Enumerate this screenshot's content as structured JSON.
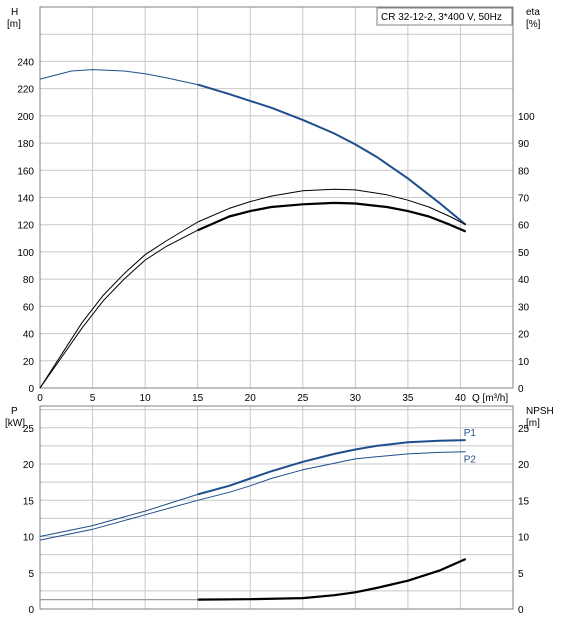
{
  "chart_data": [
    {
      "type": "line",
      "title": "CR 32-12-2, 3*400 V, 50Hz",
      "ylabel_left": [
        "H",
        "[m]"
      ],
      "ylabel_right": [
        "eta",
        "[%]"
      ],
      "xlabel": "Q [m³/h]",
      "xlim": [
        0,
        45
      ],
      "ylim_left": [
        0,
        280
      ],
      "ylim_right": [
        0,
        140
      ],
      "x_ticks": [
        "0",
        "5",
        "10",
        "15",
        "20",
        "25",
        "30",
        "35",
        "40"
      ],
      "y_ticks_left": [
        "0",
        "20",
        "40",
        "60",
        "80",
        "100",
        "120",
        "140",
        "160",
        "180",
        "200",
        "220",
        "240"
      ],
      "y_ticks_right": [
        "0",
        "10",
        "20",
        "30",
        "40",
        "50",
        "60",
        "70",
        "80",
        "90",
        "100"
      ],
      "grid": true,
      "series": [
        {
          "axis": "left",
          "color": "#1f4e8c",
          "points": [
            [
              0,
              227
            ],
            [
              3,
              233
            ],
            [
              5,
              234
            ],
            [
              8,
              233
            ],
            [
              10,
              231
            ],
            [
              12,
              228
            ],
            [
              15,
              223
            ],
            [
              18,
              216
            ],
            [
              20,
              211
            ],
            [
              22,
              206
            ],
            [
              25,
              197
            ],
            [
              28,
              187
            ],
            [
              30,
              179
            ],
            [
              32,
              170
            ],
            [
              35,
              154
            ],
            [
              38,
              136
            ],
            [
              40.5,
              120
            ]
          ]
        },
        {
          "axis": "right",
          "color": "#000000",
          "points": [
            [
              0,
              0
            ],
            [
              2,
              12
            ],
            [
              4,
              24
            ],
            [
              6,
              34
            ],
            [
              8,
              42
            ],
            [
              10,
              49
            ],
            [
              12,
              54
            ],
            [
              15,
              61
            ],
            [
              18,
              66
            ],
            [
              20,
              68.5
            ],
            [
              22,
              70.5
            ],
            [
              25,
              72.5
            ],
            [
              28,
              73
            ],
            [
              30,
              72.8
            ],
            [
              33,
              71
            ],
            [
              35,
              69
            ],
            [
              37,
              66.5
            ],
            [
              39,
              63
            ],
            [
              40.5,
              60
            ]
          ]
        },
        {
          "axis": "right",
          "color": "#000000",
          "points": [
            [
              0,
              0
            ],
            [
              2,
              11
            ],
            [
              4,
              22
            ],
            [
              6,
              32
            ],
            [
              8,
              40
            ],
            [
              10,
              47
            ],
            [
              12,
              52
            ],
            [
              15,
              58
            ],
            [
              18,
              63
            ],
            [
              20,
              65
            ],
            [
              22,
              66.5
            ],
            [
              25,
              67.5
            ],
            [
              28,
              68
            ],
            [
              30,
              67.8
            ],
            [
              33,
              66.5
            ],
            [
              35,
              65
            ],
            [
              37,
              63
            ],
            [
              39,
              60
            ],
            [
              40.5,
              57.5
            ]
          ]
        }
      ]
    },
    {
      "type": "line",
      "ylabel_left": [
        "P",
        "[kW]"
      ],
      "ylabel_right": [
        "NPSH",
        "[m]"
      ],
      "xlim": [
        0,
        45
      ],
      "ylim_left": [
        0,
        28
      ],
      "ylim_right": [
        0,
        28
      ],
      "y_ticks_left": [
        "0",
        "5",
        "10",
        "15",
        "20",
        "25"
      ],
      "y_ticks_right": [
        "0",
        "5",
        "10",
        "15",
        "20",
        "25"
      ],
      "grid": true,
      "series": [
        {
          "name": "P1",
          "axis": "left",
          "color": "#1f4e8c",
          "points": [
            [
              0,
              10
            ],
            [
              5,
              11.5
            ],
            [
              10,
              13.5
            ],
            [
              15,
              15.8
            ],
            [
              18,
              17
            ],
            [
              20,
              18
            ],
            [
              22,
              19
            ],
            [
              25,
              20.3
            ],
            [
              28,
              21.4
            ],
            [
              30,
              22
            ],
            [
              32,
              22.5
            ],
            [
              35,
              23
            ],
            [
              38,
              23.2
            ],
            [
              40.5,
              23.3
            ]
          ]
        },
        {
          "name": "P2",
          "axis": "left",
          "color": "#1f4e8c",
          "points": [
            [
              0,
              9.5
            ],
            [
              5,
              11
            ],
            [
              10,
              13
            ],
            [
              15,
              15
            ],
            [
              18,
              16.1
            ],
            [
              20,
              17
            ],
            [
              22,
              18
            ],
            [
              25,
              19.2
            ],
            [
              28,
              20.1
            ],
            [
              30,
              20.7
            ],
            [
              32,
              21
            ],
            [
              35,
              21.4
            ],
            [
              38,
              21.6
            ],
            [
              40.5,
              21.7
            ]
          ]
        },
        {
          "axis": "right",
          "color": "#000000",
          "points": [
            [
              0,
              1.3
            ],
            [
              15,
              1.3
            ],
            [
              20,
              1.35
            ],
            [
              25,
              1.5
            ],
            [
              28,
              1.9
            ],
            [
              30,
              2.3
            ],
            [
              32,
              2.9
            ],
            [
              35,
              3.9
            ],
            [
              38,
              5.3
            ],
            [
              40.5,
              6.9
            ]
          ]
        }
      ]
    }
  ]
}
